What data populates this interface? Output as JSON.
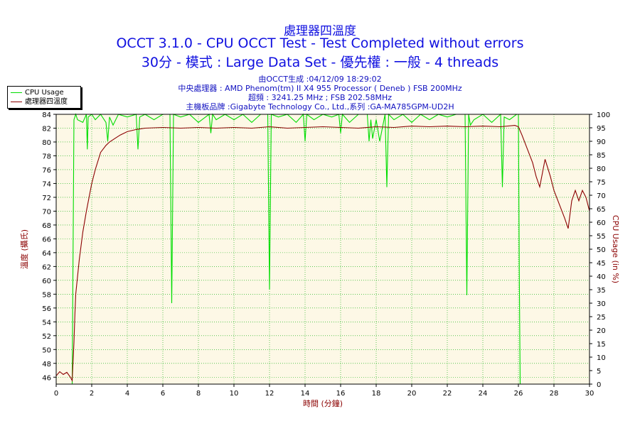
{
  "header": {
    "title_line1": "處理器四溫度",
    "title_line2": "OCCT 3.1.0 - CPU OCCT Test - Test Completed without errors",
    "title_line3": "30分 - 模式 : Large Data Set - 優先權 : 一般 - 4 threads",
    "info_generated": "由OCCT生成 :04/12/09 18:29:02",
    "info_cpu": "中央處理器 : AMD Phenom(tm) II X4 955 Processor ( Deneb ) FSB 200MHz",
    "info_freq": "超頻 : 3241.25 MHz ; FSB 202.58MHz",
    "info_board": "主機板品牌 :Gigabyte Technology Co., Ltd.,系列 :GA-MA785GPM-UD2H"
  },
  "legend": {
    "usage_label": "CPU Usage",
    "temp_label": "處理器四溫度"
  },
  "colors": {
    "usage": "#00dd00",
    "temp": "#8b0000",
    "plot_bg": "#fdf8e6",
    "grid": "#00aa00",
    "title": "#1010e0"
  },
  "chart_data": {
    "type": "line",
    "xlabel": "時間 (分鐘)",
    "ylabel_left": "溫度 (攝氏)",
    "ylabel_right": "CPU Usage (in %)",
    "xlim": [
      0,
      30
    ],
    "ylim_left": [
      45,
      84
    ],
    "ylim_right": [
      0,
      100
    ],
    "x_ticks": [
      0,
      2,
      4,
      6,
      8,
      10,
      12,
      14,
      16,
      18,
      20,
      22,
      24,
      26,
      28,
      30
    ],
    "y_left_ticks": [
      46,
      48,
      50,
      52,
      54,
      56,
      58,
      60,
      62,
      64,
      66,
      68,
      70,
      72,
      74,
      76,
      78,
      80,
      82,
      84
    ],
    "y_right_ticks": [
      0,
      5,
      10,
      15,
      20,
      25,
      30,
      35,
      40,
      45,
      50,
      55,
      60,
      65,
      70,
      75,
      80,
      85,
      90,
      95,
      100
    ],
    "grid": true,
    "legend_position": "top-left",
    "series": [
      {
        "name": "CPU Usage",
        "axis": "right",
        "x": [
          0,
          0.9,
          1.0,
          1.1,
          1.2,
          1.5,
          1.7,
          1.75,
          1.8,
          2.0,
          2.2,
          2.5,
          2.8,
          2.9,
          3.0,
          3.2,
          3.5,
          4.0,
          4.5,
          4.6,
          4.7,
          5.0,
          5.5,
          6.0,
          6.4,
          6.5,
          6.6,
          7.0,
          7.5,
          8.0,
          8.6,
          8.7,
          8.8,
          9.0,
          9.5,
          10.0,
          10.5,
          11.0,
          11.5,
          11.9,
          12.0,
          12.1,
          12.5,
          13.0,
          13.5,
          13.9,
          14.0,
          14.1,
          14.5,
          15.0,
          15.5,
          15.9,
          16.0,
          16.1,
          16.5,
          17.0,
          17.5,
          17.6,
          17.7,
          17.8,
          18.0,
          18.2,
          18.5,
          18.6,
          18.7,
          19.0,
          19.5,
          20.0,
          20.5,
          21.0,
          21.5,
          22.0,
          22.5,
          23.0,
          23.1,
          23.2,
          23.3,
          23.5,
          24.0,
          24.5,
          25.0,
          25.1,
          25.2,
          25.5,
          25.9,
          26.0,
          26.05,
          26.1,
          26.2,
          28.0,
          30.0
        ],
        "values": [
          0,
          0,
          98,
          100,
          98,
          97,
          100,
          87,
          99,
          100,
          98,
          100,
          97,
          90,
          99,
          96,
          100,
          99,
          100,
          87,
          99,
          100,
          98,
          100,
          100,
          30,
          100,
          99,
          100,
          97,
          100,
          93,
          100,
          98,
          100,
          98,
          100,
          97,
          100,
          100,
          35,
          100,
          99,
          100,
          97,
          100,
          90,
          100,
          98,
          100,
          99,
          100,
          93,
          100,
          97,
          100,
          100,
          90,
          98,
          91,
          98,
          90,
          100,
          73,
          100,
          98,
          100,
          97,
          100,
          98,
          100,
          99,
          100,
          100,
          33,
          100,
          96,
          98,
          100,
          97,
          100,
          73,
          99,
          98,
          100,
          100,
          40,
          0,
          0,
          0,
          0
        ]
      },
      {
        "name": "處理器四溫度",
        "axis": "left",
        "x": [
          0,
          0.2,
          0.4,
          0.6,
          0.8,
          0.9,
          1.0,
          1.05,
          1.1,
          1.3,
          1.5,
          1.7,
          2.0,
          2.2,
          2.5,
          2.8,
          3.0,
          3.3,
          3.6,
          4.0,
          4.5,
          5.0,
          6.0,
          7.0,
          8.0,
          9.0,
          10.0,
          11.0,
          12.0,
          13.0,
          14.0,
          15.0,
          16.0,
          17.0,
          18.0,
          19.0,
          20.0,
          21.0,
          22.0,
          23.0,
          24.0,
          25.0,
          25.8,
          26.0,
          26.2,
          26.5,
          26.8,
          27.0,
          27.2,
          27.5,
          27.8,
          28.0,
          28.3,
          28.6,
          28.8,
          29.0,
          29.2,
          29.4,
          29.6,
          29.8,
          30.0
        ],
        "values": [
          46.2,
          46.8,
          46.4,
          46.7,
          46.0,
          45.5,
          51,
          55,
          58,
          63,
          67,
          70,
          74,
          76,
          78.5,
          79.5,
          80,
          80.5,
          81,
          81.5,
          81.8,
          82,
          82.1,
          82,
          82.1,
          82,
          82.1,
          82,
          82.2,
          82,
          82.1,
          82.2,
          82.1,
          82,
          82.2,
          82.1,
          82.3,
          82.2,
          82.3,
          82.2,
          82.3,
          82.2,
          82.4,
          82.2,
          81,
          79,
          77,
          75,
          73.5,
          77.5,
          75,
          73,
          71,
          69,
          67.5,
          71.5,
          73,
          71.5,
          73,
          72,
          70
        ]
      }
    ]
  }
}
